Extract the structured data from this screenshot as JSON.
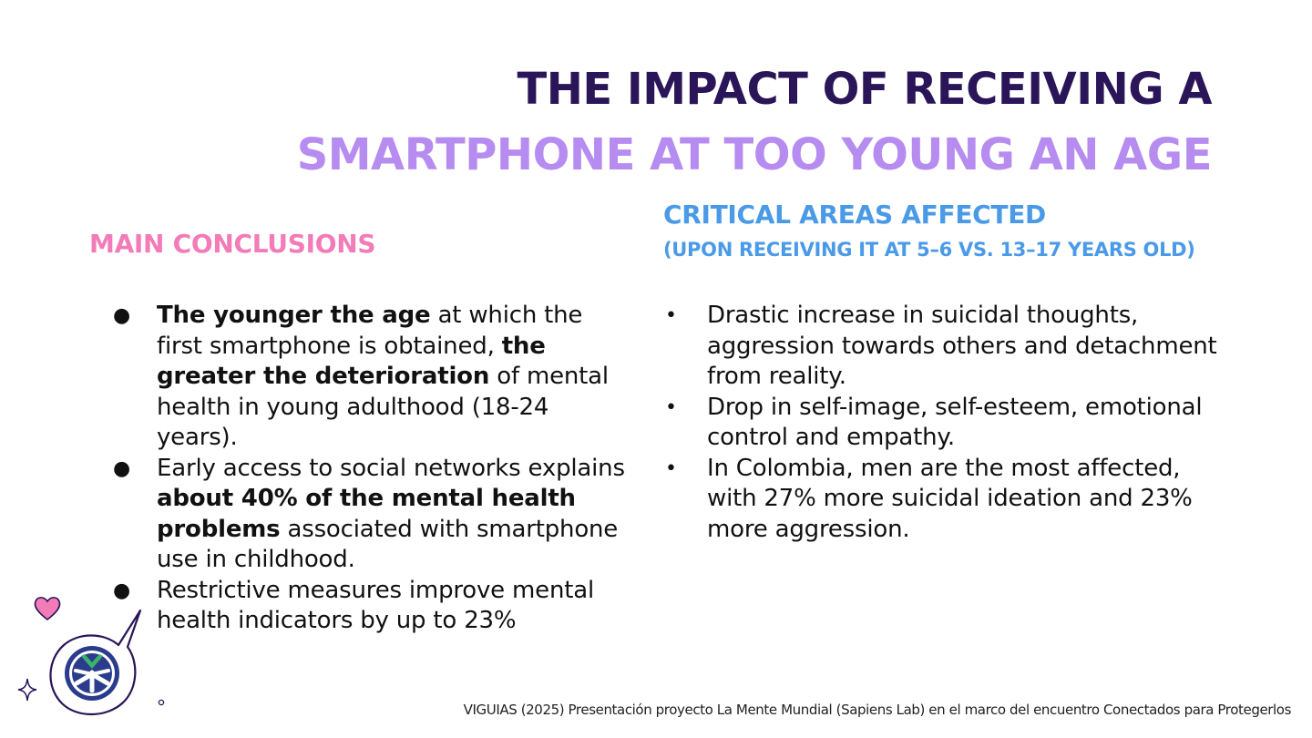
{
  "title": {
    "line1": "THE IMPACT OF RECEIVING A",
    "line2": "SMARTPHONE AT TOO YOUNG AN AGE"
  },
  "main_conclusions": {
    "heading": "MAIN CONCLUSIONS",
    "bullet_symbol": "●",
    "items": [
      {
        "parts": [
          {
            "text": "The younger the age",
            "bold": true
          },
          {
            "text": " at which the first smartphone is obtained, ",
            "bold": false
          },
          {
            "text": "the greater the deterioration",
            "bold": true
          },
          {
            "text": " of mental health in young adulthood (18-24 years).",
            "bold": false
          }
        ]
      },
      {
        "parts": [
          {
            "text": "Early access to social networks explains ",
            "bold": false
          },
          {
            "text": "about 40% of the mental health problems",
            "bold": true
          },
          {
            "text": " associated with smartphone use in childhood.",
            "bold": false
          }
        ]
      },
      {
        "parts": [
          {
            "text": "Restrictive measures improve mental health indicators by up to 23%",
            "bold": false
          }
        ]
      }
    ]
  },
  "critical_areas": {
    "heading": "CRITICAL AREAS AFFECTED",
    "subheading": "(UPON RECEIVING IT AT 5–6 VS. 13–17 YEARS OLD)",
    "bullet_symbol": "•",
    "items": [
      "Drastic increase in suicidal thoughts, aggression towards others and detachment from reality.",
      "Drop in self-image, self-esteem, emotional control and empathy.",
      "In Colombia, men are the most affected, with 27% more suicidal ideation and 23% more aggression."
    ]
  },
  "citation": "VIGUIAS (2025) Presentación proyecto La Mente Mundial (Sapiens Lab) en el marco del encuentro Conectados para Protegerlos",
  "colors": {
    "title_dark": "#2a1558",
    "title_light": "#b68cf0",
    "main_heading": "#f27bb8",
    "critical_heading": "#4a9ae8",
    "heart": "#f27bb8",
    "logo_navy": "#2b3c8c",
    "logo_green": "#3bb36a"
  },
  "icons": {
    "heart": "heart-icon",
    "sparkle": "sparkle-icon",
    "logo": "logo-speech-bubble"
  }
}
